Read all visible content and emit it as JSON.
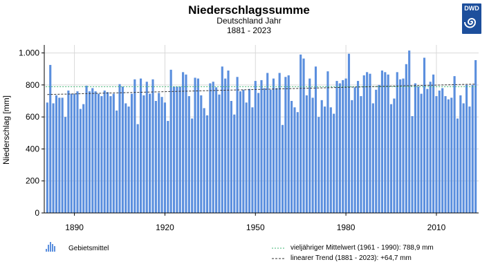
{
  "header": {
    "title": "Niederschlagssumme",
    "subtitle": "Deutschland Jahr",
    "period": "1881 - 2023",
    "logo_text": "DWD"
  },
  "colors": {
    "bar": "#5b8fde",
    "bar_edge": "#3f74c8",
    "mean_line": "#3cb371",
    "trend_line": "#333333",
    "logo_bg": "#1d4f9c"
  },
  "legend": {
    "bars_label": "Gebietsmittel",
    "mean_label": "vieljähriger Mittelwert (1961 - 1990): 788,9 mm",
    "trend_label": "linearer Trend (1881 - 2023): +64,7 mm"
  },
  "chart_data": {
    "type": "bar",
    "title": "Niederschlagssumme",
    "subtitle": "Deutschland Jahr",
    "ylabel": "Niederschlag [mm]",
    "ylim": [
      0,
      1050
    ],
    "yticks": [
      0,
      200,
      400,
      600,
      800,
      1000
    ],
    "ytick_labels": [
      "0",
      "200",
      "400",
      "600",
      "800",
      "1.000"
    ],
    "xticks": [
      1890,
      1920,
      1950,
      1980,
      2010
    ],
    "xtick_labels": [
      "1890",
      "1920",
      "1950",
      "1980",
      "2010"
    ],
    "xlim": [
      1880,
      2024
    ],
    "grid": true,
    "legend_position": "bottom",
    "x_start": 1881,
    "x_end": 2023,
    "values": [
      690,
      925,
      685,
      735,
      720,
      720,
      600,
      765,
      745,
      745,
      760,
      650,
      680,
      795,
      760,
      780,
      760,
      745,
      730,
      765,
      755,
      730,
      745,
      640,
      805,
      790,
      685,
      665,
      745,
      835,
      555,
      840,
      735,
      820,
      745,
      835,
      700,
      750,
      725,
      690,
      575,
      895,
      790,
      790,
      790,
      880,
      865,
      730,
      590,
      845,
      840,
      735,
      655,
      610,
      810,
      820,
      785,
      740,
      915,
      840,
      890,
      700,
      615,
      850,
      760,
      770,
      690,
      775,
      660,
      825,
      750,
      830,
      780,
      875,
      770,
      840,
      780,
      875,
      550,
      850,
      860,
      700,
      660,
      630,
      990,
      965,
      735,
      840,
      720,
      915,
      600,
      705,
      665,
      885,
      660,
      620,
      825,
      810,
      830,
      840,
      995,
      705,
      785,
      825,
      730,
      860,
      880,
      870,
      685,
      770,
      800,
      890,
      880,
      865,
      680,
      715,
      880,
      835,
      840,
      930,
      1015,
      605,
      810,
      790,
      745,
      970,
      775,
      820,
      865,
      730,
      765,
      780,
      730,
      710,
      720,
      855,
      590,
      735,
      685,
      800,
      665,
      800,
      955
    ],
    "mean_1961_1990": 788.9,
    "trend": {
      "start_year": 1881,
      "end_year": 2023,
      "start_value": 740,
      "end_value": 805,
      "change_label": "+64,7 mm"
    }
  }
}
